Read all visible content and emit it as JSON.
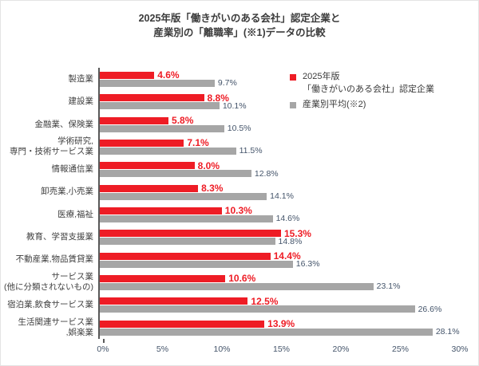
{
  "title": {
    "line1": "2025年版「働きがいのある会社」認定企業と",
    "line2": "産業別の「離職率」(※1)データの比較"
  },
  "legend": {
    "certified": {
      "line1": "2025年版",
      "line2": "「働きがいのある会社」認定企業",
      "color": "#EE1C25"
    },
    "industry": {
      "line1": "産業別平均(※2)",
      "color": "#A6A6A6"
    }
  },
  "colors": {
    "certified_bar": "#EE1C25",
    "industry_bar": "#A6A6A6",
    "certified_value_label": "#EE1C25",
    "industry_value_label": "#44546A",
    "axis_line": "#595959",
    "axis_tick_label": "#44546A",
    "category_label": "#404040"
  },
  "chart_data": {
    "type": "bar",
    "orientation": "horizontal",
    "title": "2025年版「働きがいのある会社」認定企業と産業別の「離職率」(※1)データの比較",
    "categories": [
      [
        "製造業"
      ],
      [
        "建設業"
      ],
      [
        "金融業、保険業"
      ],
      [
        "学術研究,",
        "専門・技術サービス業"
      ],
      [
        "情報通信業"
      ],
      [
        "卸売業,小売業"
      ],
      [
        "医療,福祉"
      ],
      [
        "教育、学習支援業"
      ],
      [
        "不動産業,物品賃貸業"
      ],
      [
        "サービス業",
        "(他に分類されないもの)"
      ],
      [
        "宿泊業,飲食サービス業"
      ],
      [
        "生活関連サービス業",
        ",娯楽業"
      ]
    ],
    "series": [
      {
        "name": "2025年版「働きがいのある会社」認定企業",
        "color": "#EE1C25",
        "label_color": "#EE1C25",
        "values": [
          4.6,
          8.8,
          5.8,
          7.1,
          8.0,
          8.3,
          10.3,
          15.3,
          14.4,
          10.6,
          12.5,
          13.9
        ]
      },
      {
        "name": "産業別平均(※2)",
        "color": "#A6A6A6",
        "label_color": "#44546A",
        "values": [
          9.7,
          10.1,
          10.5,
          11.5,
          12.8,
          14.1,
          14.6,
          14.8,
          16.3,
          23.1,
          26.6,
          28.1
        ]
      }
    ],
    "xlim": [
      0,
      30
    ],
    "x_ticks": [
      "0%",
      "5%",
      "10%",
      "15%",
      "20%",
      "25%",
      "30%"
    ],
    "grid": false,
    "legend_position": "upper-right"
  }
}
